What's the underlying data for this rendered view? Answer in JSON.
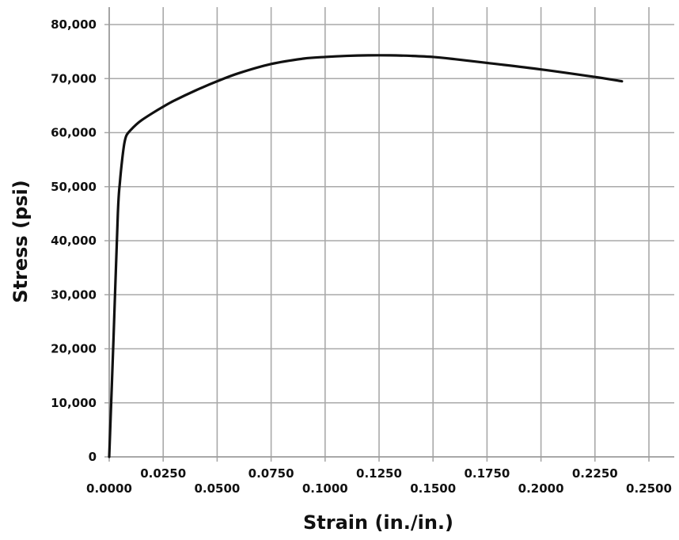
{
  "chart_data": {
    "type": "line",
    "title": "",
    "xlabel": "Strain (in./in.)",
    "ylabel": "Stress (psi)",
    "xlim": [
      0,
      0.25
    ],
    "ylim": [
      0,
      80000
    ],
    "grid": true,
    "x_ticks": [
      "0.0000",
      "0.0250",
      "0.0500",
      "0.0750",
      "0.1000",
      "0.1250",
      "0.1500",
      "0.1750",
      "0.2000",
      "0.2250",
      "0.2500"
    ],
    "y_ticks": [
      "0",
      "10,000",
      "20,000",
      "30,000",
      "40,000",
      "50,000",
      "60,000",
      "70,000",
      "80,000"
    ],
    "series": [
      {
        "x": [
          0.0,
          0.002,
          0.004,
          0.005,
          0.006,
          0.007,
          0.008,
          0.01,
          0.0125,
          0.015,
          0.02,
          0.025,
          0.03,
          0.04,
          0.05,
          0.06,
          0.075,
          0.09,
          0.1,
          0.11,
          0.12,
          0.13,
          0.14,
          0.15,
          0.16,
          0.175,
          0.2,
          0.225,
          0.2375
        ],
        "y": [
          0,
          22000,
          45000,
          51000,
          55000,
          58000,
          59500,
          60500,
          61500,
          62300,
          63600,
          64800,
          65900,
          67800,
          69500,
          71000,
          72700,
          73700,
          74000,
          74200,
          74300,
          74300,
          74200,
          74000,
          73600,
          72900,
          71700,
          70300,
          69500
        ],
        "color": "#111111"
      }
    ]
  }
}
